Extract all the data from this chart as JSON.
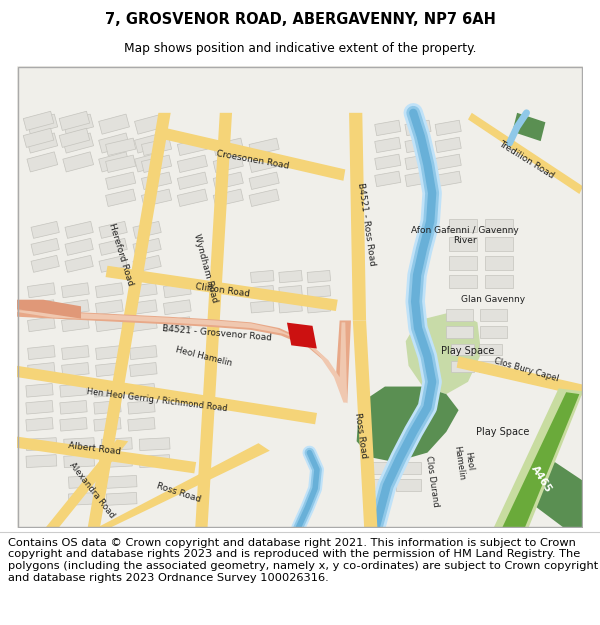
{
  "title": "7, GROSVENOR ROAD, ABERGAVENNY, NP7 6AH",
  "subtitle": "Map shows position and indicative extent of the property.",
  "footer": "Contains OS data © Crown copyright and database right 2021. This information is subject to Crown copyright and database rights 2023 and is reproduced with the permission of HM Land Registry. The polygons (including the associated geometry, namely x, y co-ordinates) are subject to Crown copyright and database rights 2023 Ordnance Survey 100026316.",
  "map_bg": "#f0efea",
  "road_yellow": "#f5d478",
  "road_yellow_light": "#fbe89a",
  "building_fill": "#e2e1dc",
  "building_edge": "#c5c4be",
  "park_light": "#c8dba8",
  "park_dark": "#5a8f52",
  "river_blue_light": "#aad4f0",
  "river_blue": "#78b8e0",
  "road_salmon": "#e8a888",
  "road_salmon_light": "#f0c8b0",
  "highlight_red": "#cc1111",
  "a465_green_light": "#c8dca0",
  "a465_green_dark": "#6aaa3a",
  "text_dark": "#202020",
  "title_fontsize": 10.5,
  "subtitle_fontsize": 8.8,
  "footer_fontsize": 8.2,
  "label_fontsize": 6.5
}
